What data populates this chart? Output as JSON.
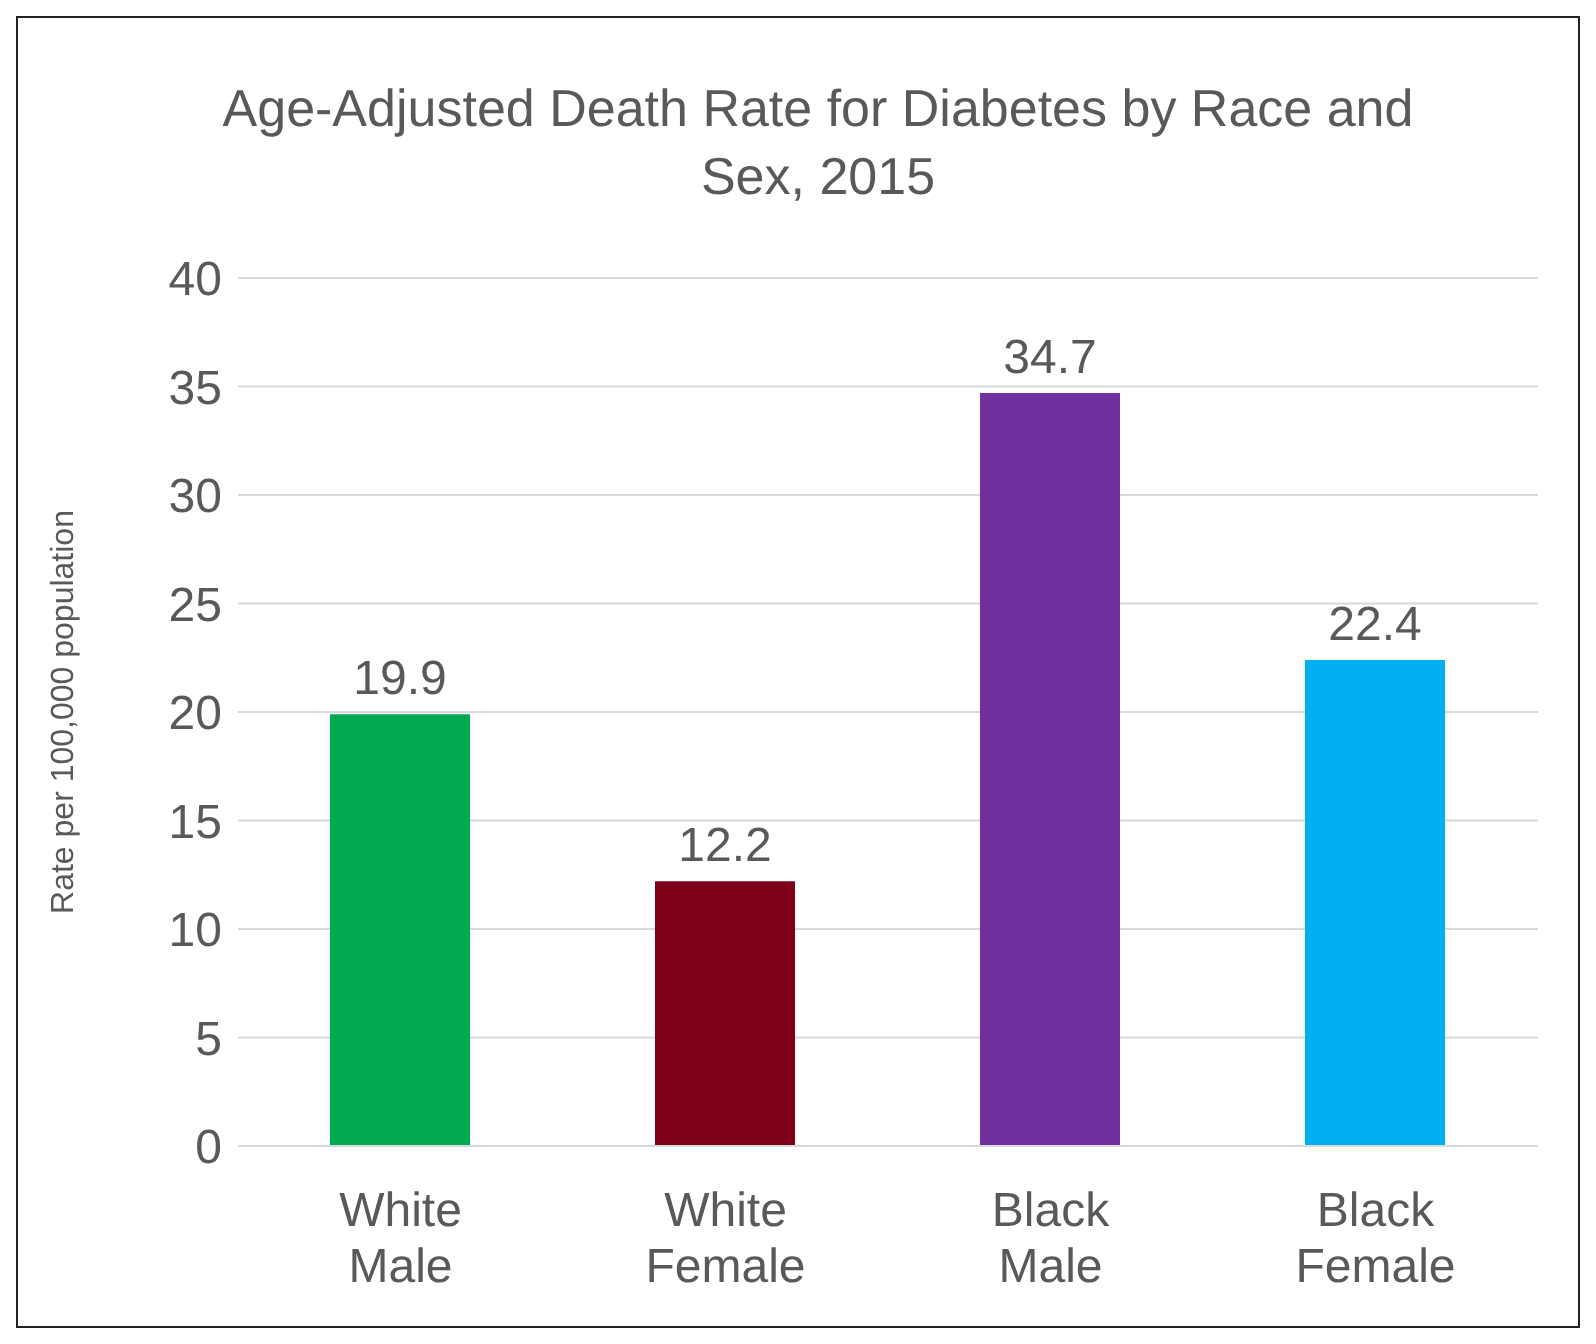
{
  "chart_data": {
    "type": "bar",
    "title": "Age-Adjusted Death Rate for Diabetes by Race and Sex, 2015",
    "ylabel": "Rate per 100,000 population",
    "categories": [
      "White Male",
      "White Female",
      "Black Male",
      "Black Female"
    ],
    "values": [
      19.9,
      12.2,
      34.7,
      22.4
    ],
    "colors": [
      "#00a94f",
      "#7f0019",
      "#7030a0",
      "#00b0f0"
    ],
    "ylim": [
      0,
      40
    ],
    "yticks": [
      0,
      5,
      10,
      15,
      20,
      25,
      30,
      35,
      40
    ],
    "grid": "y",
    "data_labels": true
  }
}
